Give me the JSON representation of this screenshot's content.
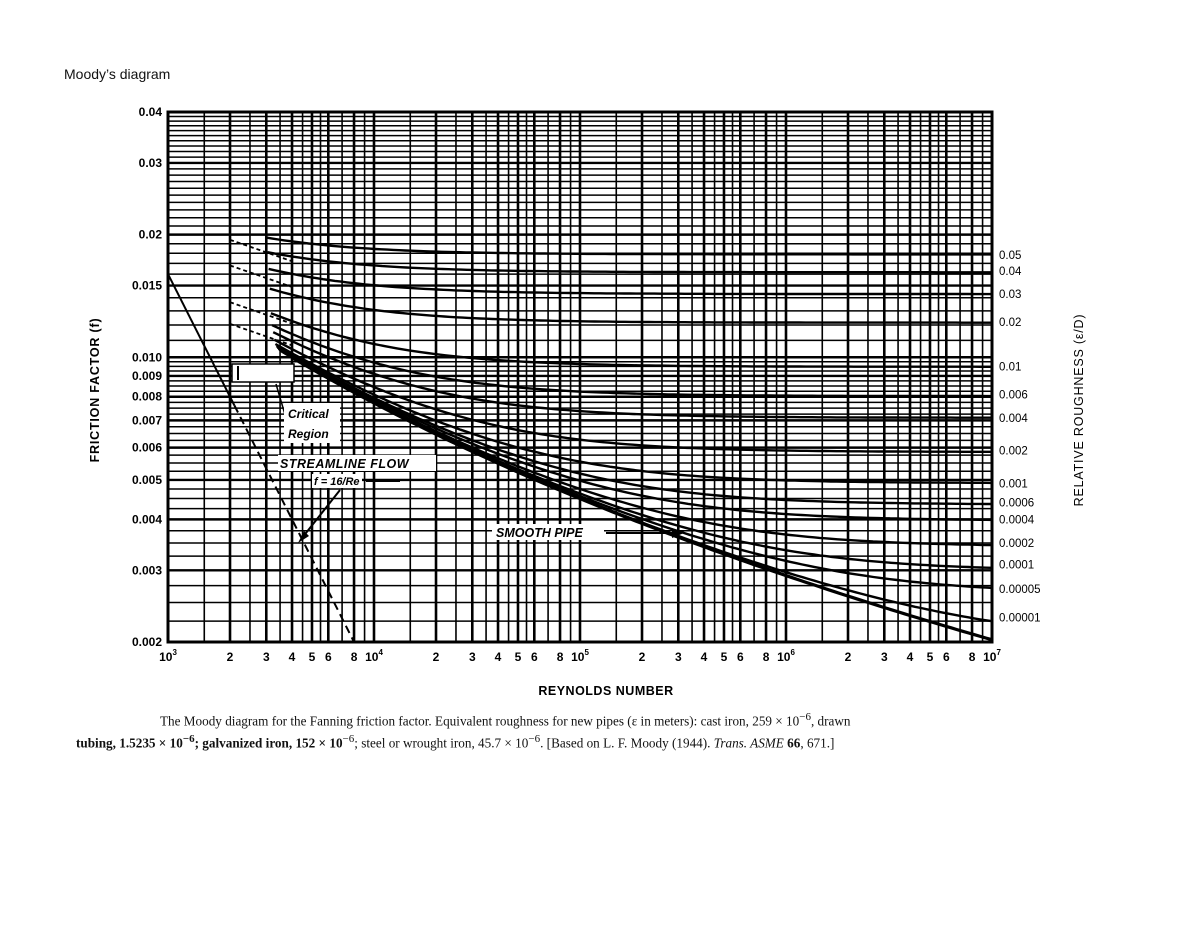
{
  "page": {
    "title": "Moody’s diagram"
  },
  "chart_data": {
    "type": "line",
    "title": "Moody diagram",
    "xlabel": "REYNOLDS NUMBER",
    "ylabel": "FRICTION FACTOR (f)",
    "y2label": "RELATIVE ROUGHNESS (ε/D)",
    "xscale": "log",
    "yscale": "log",
    "xlim": [
      1000,
      10000000
    ],
    "ylim": [
      0.002,
      0.04
    ],
    "grid": true,
    "x_ticks": [
      {
        "value": 1000,
        "label": "10",
        "exp": "3"
      },
      {
        "value": 2000,
        "label": "2"
      },
      {
        "value": 3000,
        "label": "3"
      },
      {
        "value": 4000,
        "label": "4"
      },
      {
        "value": 5000,
        "label": "5"
      },
      {
        "value": 6000,
        "label": "6"
      },
      {
        "value": 8000,
        "label": "8"
      },
      {
        "value": 10000,
        "label": "10",
        "exp": "4"
      },
      {
        "value": 20000,
        "label": "2"
      },
      {
        "value": 30000,
        "label": "3"
      },
      {
        "value": 40000,
        "label": "4"
      },
      {
        "value": 50000,
        "label": "5"
      },
      {
        "value": 60000,
        "label": "6"
      },
      {
        "value": 80000,
        "label": "8"
      },
      {
        "value": 100000,
        "label": "10",
        "exp": "5"
      },
      {
        "value": 200000,
        "label": "2"
      },
      {
        "value": 300000,
        "label": "3"
      },
      {
        "value": 400000,
        "label": "4"
      },
      {
        "value": 500000,
        "label": "5"
      },
      {
        "value": 600000,
        "label": "6"
      },
      {
        "value": 800000,
        "label": "8"
      },
      {
        "value": 1000000,
        "label": "10",
        "exp": "6"
      },
      {
        "value": 2000000,
        "label": "2"
      },
      {
        "value": 3000000,
        "label": "3"
      },
      {
        "value": 4000000,
        "label": "4"
      },
      {
        "value": 5000000,
        "label": "5"
      },
      {
        "value": 6000000,
        "label": "6"
      },
      {
        "value": 8000000,
        "label": "8"
      },
      {
        "value": 10000000,
        "label": "10",
        "exp": "7"
      }
    ],
    "y_ticks": [
      {
        "value": 0.04,
        "label": "0.04"
      },
      {
        "value": 0.03,
        "label": "0.03"
      },
      {
        "value": 0.02,
        "label": "0.02"
      },
      {
        "value": 0.015,
        "label": "0.015"
      },
      {
        "value": 0.01,
        "label": "0.010"
      },
      {
        "value": 0.009,
        "label": "0.009"
      },
      {
        "value": 0.008,
        "label": "0.008"
      },
      {
        "value": 0.007,
        "label": "0.007"
      },
      {
        "value": 0.006,
        "label": "0.006"
      },
      {
        "value": 0.005,
        "label": "0.005"
      },
      {
        "value": 0.004,
        "label": "0.004"
      },
      {
        "value": 0.003,
        "label": "0.003"
      },
      {
        "value": 0.002,
        "label": "0.002"
      }
    ],
    "roughness_labels": [
      {
        "value": "0.05",
        "f_at_right": 0.0178
      },
      {
        "value": "0.04",
        "f_at_right": 0.0163
      },
      {
        "value": "0.03",
        "f_at_right": 0.0143
      },
      {
        "value": "0.02",
        "f_at_right": 0.0122
      },
      {
        "value": "0.01",
        "f_at_right": 0.0095
      },
      {
        "value": "0.006",
        "f_at_right": 0.0081
      },
      {
        "value": "0.004",
        "f_at_right": 0.0071
      },
      {
        "value": "0.002",
        "f_at_right": 0.0059
      },
      {
        "value": "0.001",
        "f_at_right": 0.0049
      },
      {
        "value": "0.0006",
        "f_at_right": 0.0044
      },
      {
        "value": "0.0004",
        "f_at_right": 0.004
      },
      {
        "value": "0.0002",
        "f_at_right": 0.0035
      },
      {
        "value": "0.0001",
        "f_at_right": 0.0031
      },
      {
        "value": "0.00005",
        "f_at_right": 0.0027
      },
      {
        "value": "0.00001",
        "f_at_right": 0.0023
      }
    ],
    "series": [
      {
        "name": "Streamline flow f=16/Re",
        "x": [
          1000,
          2000,
          4000,
          8000
        ],
        "y": [
          0.016,
          0.008,
          0.004,
          0.002
        ],
        "style": "solid-then-dashed"
      },
      {
        "name": "Smooth pipe",
        "x": [
          4000,
          10000,
          100000,
          1000000,
          10000000
        ],
        "y": [
          0.01,
          0.0078,
          0.0045,
          0.0029,
          0.002
        ]
      }
    ],
    "annotations": [
      {
        "text": "Critical",
        "text2": "Region"
      },
      {
        "text": "STREAMLINE FLOW",
        "text2": "f = 16/Re"
      },
      {
        "text": "SMOOTH PIPE"
      }
    ]
  },
  "caption": {
    "line1_a": "The Moody diagram for the Fanning friction factor. Equivalent roughness for new pipes (ε in meters): cast iron, 259 × 10",
    "line1_exp": "−6",
    "line1_b": ", drawn",
    "line2_a": "tubing, 1.5235 × 10",
    "line2_exp1": "−6",
    "line2_b": "; galvanized iron, 152 × 10",
    "line2_exp2": "−6",
    "line2_c": "; steel or wrought iron, 45.7 × 10",
    "line2_exp3": "−6",
    "line2_d": ". [Based on L. F. Moody (1944). ",
    "line2_journal": "Trans. ASME",
    "line2_vol": " 66",
    "line2_e": ", 671.]"
  }
}
